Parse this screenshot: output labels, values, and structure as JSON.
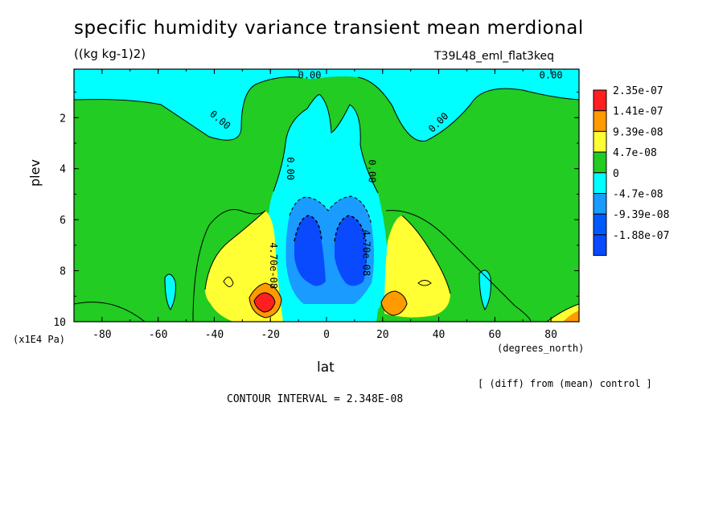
{
  "chart_data": {
    "type": "contour",
    "title": "specific humidity variance transient mean merdional",
    "units_label": "((kg kg-1)2)",
    "run_id": "T39L48_eml_flat3keq",
    "xlabel": "lat",
    "ylabel": "plev",
    "x_units": "(degrees_north)",
    "y_units": "(x1E4 Pa)",
    "x_ticks": [
      "-80",
      "-60",
      "-40",
      "-20",
      "0",
      "20",
      "40",
      "60",
      "80"
    ],
    "y_ticks": [
      "2",
      "4",
      "6",
      "8",
      "10"
    ],
    "xlim": [
      -90,
      90
    ],
    "ylim": [
      0.1,
      10
    ],
    "legend": {
      "labels": [
        "2.35e-07",
        "1.41e-07",
        "9.39e-08",
        "4.7e-08",
        "0",
        "-4.7e-08",
        "-9.39e-08",
        "-1.88e-07"
      ],
      "colors": [
        "#ff1f1f",
        "#ff9a00",
        "#ffff33",
        "#22cc22",
        "#00ffff",
        "#1a9bff",
        "#005aff",
        "#0a4aff"
      ]
    },
    "contour_labels": [
      {
        "text": "0.00",
        "lat": -6,
        "plev": 0.35,
        "angle": 0
      },
      {
        "text": "0.00",
        "lat": 80,
        "plev": 0.35,
        "angle": 0
      },
      {
        "text": "0.00",
        "lat": -38,
        "plev": 2.1,
        "angle": 40
      },
      {
        "text": "0.00",
        "lat": 40,
        "plev": 2.2,
        "angle": -45
      },
      {
        "text": "0.00",
        "lat": -13,
        "plev": 4.0,
        "angle": 90
      },
      {
        "text": "0.00",
        "lat": 16,
        "plev": 4.1,
        "angle": 90
      },
      {
        "text": "4.70e-08",
        "lat": -19,
        "plev": 7.8,
        "angle": 90
      },
      {
        "text": "4.70e-08",
        "lat": 14,
        "plev": 7.3,
        "angle": 90
      }
    ],
    "annotation": "[ (diff) from (mean) control ]",
    "contour_interval": "CONTOUR INTERVAL = 2.348E-08"
  }
}
